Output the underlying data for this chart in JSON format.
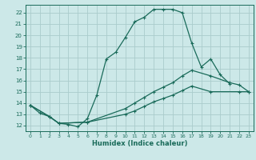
{
  "xlabel": "Humidex (Indice chaleur)",
  "bg_color": "#cce8e8",
  "grid_color": "#aacccc",
  "line_color": "#1a6b5a",
  "xlim": [
    -0.5,
    23.5
  ],
  "ylim": [
    11.5,
    22.7
  ],
  "xticks": [
    0,
    1,
    2,
    3,
    4,
    5,
    6,
    7,
    8,
    9,
    10,
    11,
    12,
    13,
    14,
    15,
    16,
    17,
    18,
    19,
    20,
    21,
    22,
    23
  ],
  "yticks": [
    12,
    13,
    14,
    15,
    16,
    17,
    18,
    19,
    20,
    21,
    22
  ],
  "line1_x": [
    0,
    1,
    2,
    3,
    4,
    5,
    6,
    7,
    8,
    9,
    10,
    11,
    12,
    13,
    14,
    15,
    16,
    17,
    18,
    19,
    20,
    21
  ],
  "line1_y": [
    13.8,
    13.1,
    12.8,
    12.2,
    12.1,
    11.9,
    12.6,
    14.7,
    17.9,
    18.5,
    19.8,
    21.2,
    21.6,
    22.3,
    22.3,
    22.3,
    22.0,
    19.3,
    17.2,
    17.9,
    16.5,
    15.7
  ],
  "line2_x": [
    0,
    2,
    3,
    6,
    10,
    11,
    12,
    13,
    14,
    15,
    16,
    17,
    19,
    21,
    22,
    23
  ],
  "line2_y": [
    13.8,
    12.8,
    12.2,
    12.3,
    13.5,
    14.0,
    14.5,
    15.0,
    15.4,
    15.8,
    16.4,
    16.9,
    16.4,
    15.8,
    15.6,
    15.0
  ],
  "line3_x": [
    0,
    2,
    3,
    6,
    10,
    11,
    12,
    13,
    14,
    15,
    16,
    17,
    19,
    22,
    23
  ],
  "line3_y": [
    13.8,
    12.8,
    12.2,
    12.3,
    13.0,
    13.3,
    13.7,
    14.1,
    14.4,
    14.7,
    15.1,
    15.5,
    15.0,
    15.0,
    15.0
  ]
}
